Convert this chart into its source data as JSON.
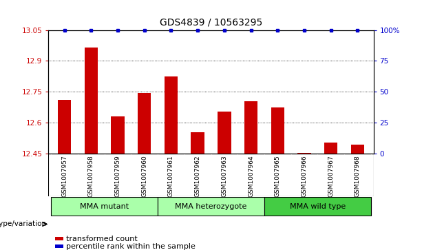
{
  "title": "GDS4839 / 10563295",
  "samples": [
    "GSM1007957",
    "GSM1007958",
    "GSM1007959",
    "GSM1007960",
    "GSM1007961",
    "GSM1007962",
    "GSM1007963",
    "GSM1007964",
    "GSM1007965",
    "GSM1007966",
    "GSM1007967",
    "GSM1007968"
  ],
  "red_values": [
    12.71,
    12.965,
    12.63,
    12.745,
    12.825,
    12.555,
    12.655,
    12.705,
    12.675,
    12.454,
    12.505,
    12.495
  ],
  "blue_values_pct": [
    100,
    100,
    100,
    100,
    100,
    100,
    100,
    100,
    100,
    100,
    100,
    100
  ],
  "ylim_left": [
    12.45,
    13.05
  ],
  "ylim_right": [
    0,
    100
  ],
  "yticks_left": [
    12.45,
    12.6,
    12.75,
    12.9,
    13.05
  ],
  "yticks_right": [
    0,
    25,
    50,
    75,
    100
  ],
  "ytick_labels_left": [
    "12.45",
    "12.6",
    "12.75",
    "12.9",
    "13.05"
  ],
  "ytick_labels_right": [
    "0",
    "25",
    "50",
    "75",
    "100%"
  ],
  "group_bounds": [
    [
      0,
      3,
      "MMA mutant",
      "#AAFFAA"
    ],
    [
      4,
      7,
      "MMA heterozygote",
      "#AAFFAA"
    ],
    [
      8,
      11,
      "MMA wild type",
      "#44CC44"
    ]
  ],
  "bar_color": "#CC0000",
  "dot_color": "#0000CC",
  "bar_width": 0.5,
  "xtick_bg": "#CCCCCC",
  "plot_bg": "#FFFFFF",
  "genotype_label": "genotype/variation",
  "legend_red": "transformed count",
  "legend_blue": "percentile rank within the sample",
  "title_fontsize": 10,
  "tick_fontsize": 7.5,
  "sample_fontsize": 6.5,
  "group_fontsize": 8
}
